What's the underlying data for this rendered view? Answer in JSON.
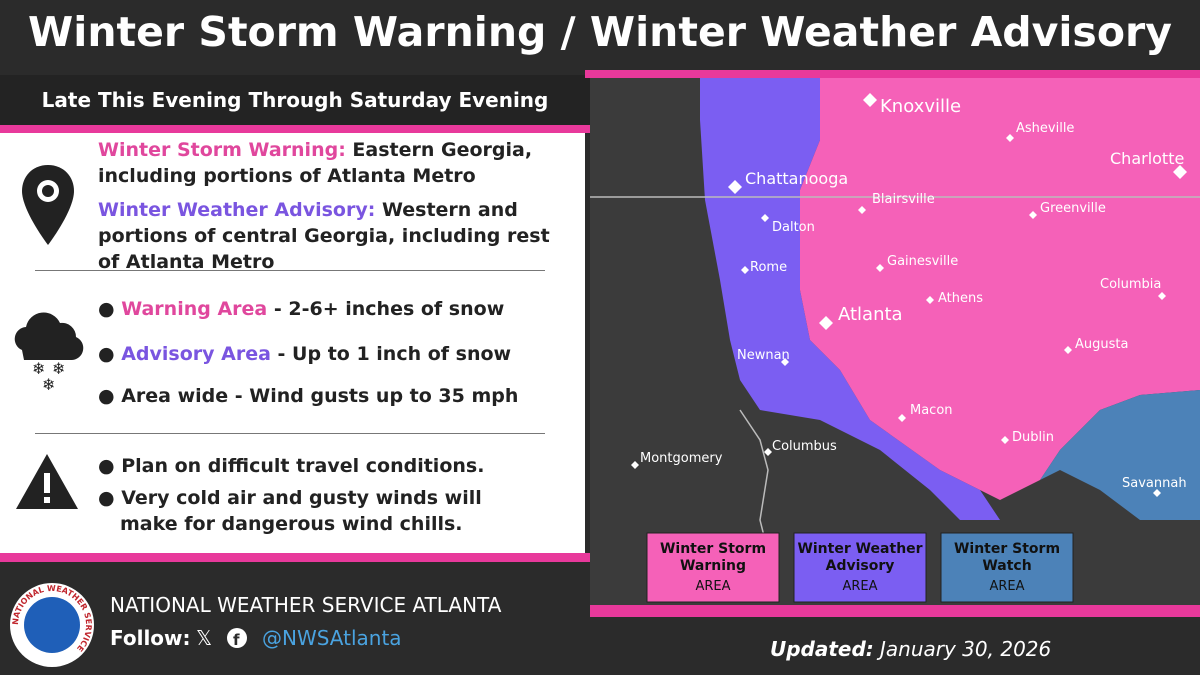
{
  "header": {
    "title": "Winter Storm Warning / Winter Weather Advisory",
    "subtitle": "Late This Evening Through Saturday Evening"
  },
  "summary": [
    {
      "label": "Winter Storm Warning:",
      "text": "Eastern Georgia, including portions of Atlanta Metro"
    },
    {
      "label": "Winter Weather Advisory:",
      "text": "Western and portions of central Georgia, including rest of Atlanta Metro"
    }
  ],
  "impacts": [
    {
      "label": "Warning Area",
      "text": "- 2-6+ inches of snow"
    },
    {
      "label": "Advisory Area",
      "text": "- Up to 1 inch of snow"
    },
    {
      "label": "Area wide",
      "text": "- Wind gusts up to 35 mph"
    }
  ],
  "actions": [
    "Plan on difficult travel conditions.",
    "Very cold air and gusty winds will make for dangerous wind chills."
  ],
  "map": {
    "cities": [
      "Knoxville",
      "Asheville",
      "Charlotte",
      "Chattanooga",
      "Blairsville",
      "Greenville",
      "Dalton",
      "Gainesville",
      "Rome",
      "Columbia",
      "Athens",
      "Atlanta",
      "Newnan",
      "Augusta",
      "Macon",
      "Dublin",
      "Columbus",
      "Montgomery",
      "Savannah"
    ],
    "legend": [
      {
        "title": "Winter Storm Warning",
        "subtitle": "AREA"
      },
      {
        "title": "Winter Weather Advisory",
        "subtitle": "AREA"
      },
      {
        "title": "Winter Storm Watch",
        "subtitle": "AREA"
      }
    ]
  },
  "footer": {
    "logo_text": "NATIONAL WEATHER SERVICE",
    "office": "NATIONAL WEATHER SERVICE ATLANTA",
    "follow": "Follow:",
    "handle": "@NWSAtlanta",
    "updated_label": "Updated:",
    "updated_date": "January 30, 2026"
  }
}
